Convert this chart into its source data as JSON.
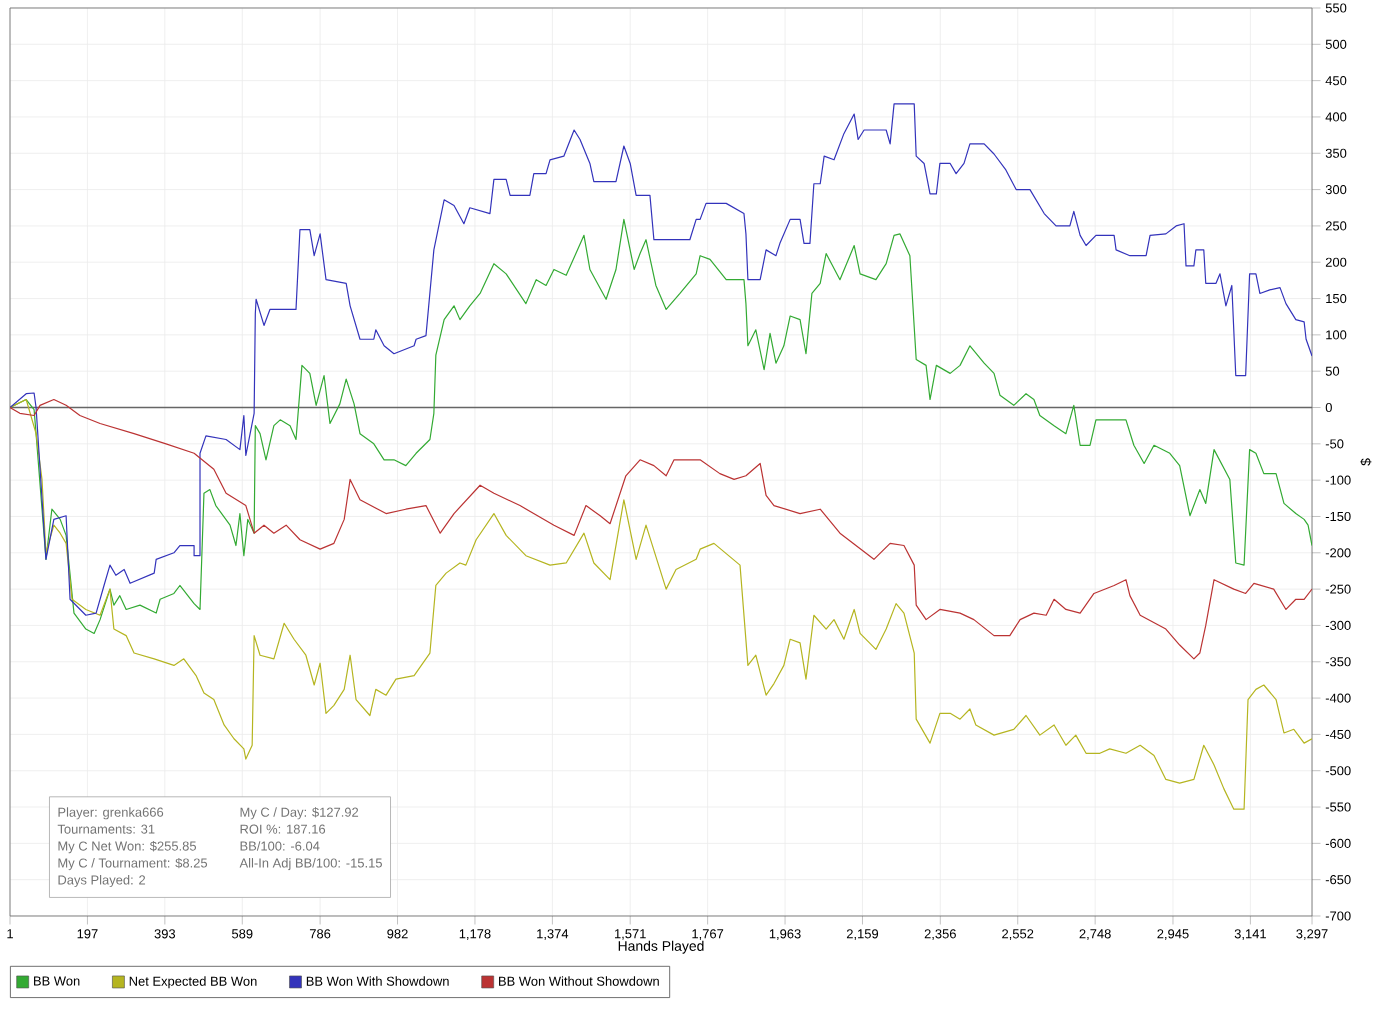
{
  "chart_data": {
    "type": "line",
    "xlabel": "Hands Played",
    "ylabel": "$",
    "xlim": [
      1,
      3297
    ],
    "ylim": [
      -700,
      550
    ],
    "xticks": [
      {
        "value": 1,
        "label": "1"
      },
      {
        "value": 197,
        "label": "197"
      },
      {
        "value": 393,
        "label": "393"
      },
      {
        "value": 589,
        "label": "589"
      },
      {
        "value": 786,
        "label": "786"
      },
      {
        "value": 982,
        "label": "982"
      },
      {
        "value": 1178,
        "label": "1,178"
      },
      {
        "value": 1374,
        "label": "1,374"
      },
      {
        "value": 1571,
        "label": "1,571"
      },
      {
        "value": 1767,
        "label": "1,767"
      },
      {
        "value": 1963,
        "label": "1,963"
      },
      {
        "value": 2159,
        "label": "2,159"
      },
      {
        "value": 2356,
        "label": "2,356"
      },
      {
        "value": 2552,
        "label": "2,552"
      },
      {
        "value": 2748,
        "label": "2,748"
      },
      {
        "value": 2945,
        "label": "2,945"
      },
      {
        "value": 3141,
        "label": "3,141"
      },
      {
        "value": 3297,
        "label": "3,297"
      }
    ],
    "yticks": [
      -700,
      -650,
      -600,
      -550,
      -500,
      -450,
      -400,
      -350,
      -300,
      -250,
      -200,
      -150,
      -100,
      -50,
      0,
      50,
      100,
      150,
      200,
      250,
      300,
      350,
      400,
      450,
      500,
      550
    ],
    "grid": true,
    "legend": "bottom",
    "ref_lines": [
      {
        "axis": "y",
        "value": 0,
        "color": "#666666"
      }
    ],
    "annotations": [
      "Player: grenka666",
      "Tournaments: 31",
      "My C Net Won: $255.85",
      "My C / Tournament: $8.25",
      "Days Played: 2",
      "My C / Day: $127.92",
      "ROI %: 187.16",
      "BB/100: -6.04",
      "All-In Adj BB/100: -15.15"
    ],
    "series": [
      {
        "name": "BB Won",
        "color": "#33aa33",
        "x": [
          1,
          42,
          62,
          67,
          92,
          107,
          128,
          143,
          163,
          193,
          214,
          229,
          254,
          264,
          279,
          295,
          330,
          371,
          381,
          416,
          431,
          467,
          482,
          492,
          507,
          522,
          558,
          573,
          583,
          593,
          603,
          619,
          622,
          634,
          649,
          669,
          685,
          710,
          725,
          740,
          760,
          776,
          796,
          811,
          836,
          852,
          872,
          887,
          922,
          948,
          973,
          1003,
          1029,
          1064,
          1074,
          1079,
          1100,
          1125,
          1140,
          1165,
          1191,
          1226,
          1257,
          1307,
          1333,
          1358,
          1378,
          1409,
          1454,
          1469,
          1510,
          1535,
          1555,
          1581,
          1596,
          1611,
          1636,
          1662,
          1697,
          1738,
          1748,
          1773,
          1814,
          1859,
          1864,
          1869,
          1889,
          1910,
          1925,
          1940,
          1960,
          1976,
          2001,
          2016,
          2031,
          2052,
          2067,
          2102,
          2138,
          2153,
          2193,
          2219,
          2239,
          2254,
          2279,
          2295,
          2320,
          2330,
          2346,
          2381,
          2406,
          2431,
          2467,
          2492,
          2507,
          2542,
          2573,
          2593,
          2608,
          2644,
          2674,
          2694,
          2710,
          2735,
          2750,
          2826,
          2846,
          2872,
          2897,
          2937,
          2962,
          2988,
          3013,
          3028,
          3049,
          3089,
          3104,
          3125,
          3139,
          3155,
          3175,
          3206,
          3226,
          3256,
          3277,
          3287,
          3297
        ],
        "values": [
          0,
          11,
          -3,
          -36,
          -209,
          -140,
          -154,
          -176,
          -283,
          -305,
          -311,
          -292,
          -250,
          -272,
          -259,
          -278,
          -272,
          -283,
          -264,
          -256,
          -245,
          -270,
          -278,
          -118,
          -113,
          -135,
          -162,
          -190,
          -146,
          -204,
          -154,
          -173,
          -25,
          -36,
          -72,
          -25,
          -17,
          -25,
          -44,
          58,
          47,
          3,
          44,
          -22,
          5,
          39,
          5,
          -36,
          -50,
          -72,
          -72,
          -80,
          -63,
          -44,
          -8,
          72,
          121,
          140,
          121,
          140,
          157,
          198,
          184,
          143,
          176,
          168,
          190,
          182,
          237,
          190,
          149,
          190,
          259,
          190,
          212,
          231,
          168,
          135,
          157,
          184,
          209,
          204,
          176,
          176,
          143,
          85,
          107,
          52,
          102,
          61,
          85,
          126,
          121,
          74,
          157,
          171,
          212,
          176,
          223,
          184,
          176,
          198,
          237,
          239,
          209,
          66,
          58,
          11,
          58,
          47,
          58,
          85,
          61,
          47,
          17,
          3,
          19,
          11,
          -11,
          -25,
          -36,
          3,
          -52,
          -52,
          -17,
          -17,
          -52,
          -77,
          -52,
          -63,
          -80,
          -149,
          -113,
          -132,
          -58,
          -99,
          -214,
          -217,
          -58,
          -63,
          -91,
          -91,
          -132,
          -146,
          -154,
          -162,
          -190
        ]
      },
      {
        "name": "Net Expected BB Won",
        "color": "#b5b520",
        "x": [
          1,
          42,
          67,
          82,
          92,
          112,
          128,
          143,
          158,
          193,
          229,
          254,
          264,
          295,
          315,
          366,
          416,
          441,
          472,
          492,
          517,
          543,
          568,
          593,
          598,
          614,
          619,
          634,
          669,
          695,
          720,
          750,
          771,
          786,
          801,
          821,
          847,
          862,
          877,
          912,
          927,
          953,
          978,
          1024,
          1064,
          1079,
          1105,
          1140,
          1155,
          1181,
          1226,
          1257,
          1307,
          1368,
          1409,
          1454,
          1479,
          1520,
          1555,
          1586,
          1611,
          1662,
          1687,
          1738,
          1748,
          1783,
          1849,
          1869,
          1889,
          1915,
          1935,
          1960,
          1976,
          2001,
          2016,
          2036,
          2067,
          2087,
          2112,
          2138,
          2153,
          2193,
          2219,
          2244,
          2264,
          2290,
          2295,
          2330,
          2355,
          2381,
          2406,
          2431,
          2446,
          2492,
          2542,
          2573,
          2608,
          2644,
          2674,
          2699,
          2725,
          2760,
          2785,
          2826,
          2862,
          2897,
          2927,
          2962,
          2998,
          3023,
          3049,
          3074,
          3099,
          3125,
          3135,
          3155,
          3175,
          3206,
          3226,
          3251,
          3277,
          3297
        ],
        "values": [
          0,
          11,
          -36,
          -99,
          -200,
          -162,
          -173,
          -187,
          -264,
          -278,
          -286,
          -250,
          -305,
          -314,
          -338,
          -346,
          -355,
          -346,
          -369,
          -393,
          -402,
          -437,
          -456,
          -470,
          -484,
          -465,
          -314,
          -341,
          -346,
          -297,
          -319,
          -341,
          -382,
          -352,
          -421,
          -410,
          -388,
          -341,
          -402,
          -424,
          -388,
          -396,
          -374,
          -369,
          -338,
          -245,
          -228,
          -214,
          -217,
          -182,
          -146,
          -176,
          -204,
          -217,
          -214,
          -173,
          -214,
          -237,
          -127,
          -209,
          -162,
          -250,
          -223,
          -209,
          -195,
          -187,
          -217,
          -355,
          -341,
          -396,
          -380,
          -355,
          -319,
          -324,
          -374,
          -286,
          -305,
          -292,
          -319,
          -278,
          -311,
          -333,
          -305,
          -270,
          -283,
          -338,
          -429,
          -462,
          -421,
          -421,
          -429,
          -415,
          -437,
          -451,
          -443,
          -424,
          -451,
          -437,
          -465,
          -451,
          -476,
          -476,
          -470,
          -476,
          -465,
          -479,
          -512,
          -517,
          -512,
          -465,
          -492,
          -525,
          -553,
          -553,
          -402,
          -388,
          -382,
          -402,
          -448,
          -443,
          -462,
          -456
        ]
      },
      {
        "name": "BB Won With Showdown",
        "color": "#3333bb",
        "x": [
          1,
          42,
          62,
          67,
          92,
          112,
          143,
          153,
          193,
          219,
          239,
          254,
          269,
          290,
          305,
          366,
          371,
          416,
          431,
          467,
          467,
          482,
          482,
          497,
          548,
          583,
          593,
          598,
          619,
          622,
          624,
          644,
          659,
          725,
          735,
          760,
          771,
          786,
          801,
          852,
          862,
          887,
          922,
          927,
          948,
          973,
          1024,
          1029,
          1054,
          1074,
          1100,
          1125,
          1150,
          1165,
          1216,
          1226,
          1257,
          1267,
          1317,
          1327,
          1358,
          1368,
          1403,
          1429,
          1444,
          1469,
          1479,
          1535,
          1555,
          1571,
          1586,
          1621,
          1631,
          1722,
          1738,
          1748,
          1763,
          1814,
          1859,
          1864,
          1869,
          1900,
          1915,
          1940,
          1950,
          1976,
          2001,
          2011,
          2026,
          2036,
          2052,
          2062,
          2087,
          2112,
          2138,
          2148,
          2163,
          2219,
          2229,
          2239,
          2290,
          2295,
          2315,
          2330,
          2346,
          2355,
          2381,
          2396,
          2416,
          2431,
          2467,
          2492,
          2522,
          2548,
          2583,
          2619,
          2649,
          2684,
          2694,
          2710,
          2725,
          2750,
          2796,
          2801,
          2836,
          2877,
          2887,
          2927,
          2953,
          2973,
          2978,
          2998,
          3003,
          3023,
          3028,
          3054,
          3064,
          3079,
          3094,
          3104,
          3129,
          3139,
          3155,
          3165,
          3190,
          3216,
          3231,
          3256,
          3277,
          3282,
          3297
        ],
        "values": [
          0,
          19,
          20,
          0,
          -209,
          -154,
          -149,
          -264,
          -286,
          -283,
          -245,
          -217,
          -231,
          -223,
          -242,
          -228,
          -209,
          -200,
          -190,
          -190,
          -204,
          -204,
          -63,
          -39,
          -44,
          -58,
          -11,
          -66,
          -8,
          129,
          149,
          113,
          135,
          135,
          245,
          245,
          209,
          239,
          176,
          171,
          140,
          94,
          94,
          107,
          85,
          74,
          85,
          94,
          99,
          217,
          286,
          278,
          253,
          275,
          267,
          314,
          314,
          292,
          292,
          322,
          322,
          341,
          346,
          382,
          369,
          336,
          311,
          311,
          360,
          336,
          292,
          292,
          231,
          231,
          259,
          259,
          281,
          281,
          267,
          239,
          176,
          176,
          217,
          209,
          226,
          259,
          259,
          226,
          226,
          308,
          308,
          346,
          341,
          377,
          404,
          369,
          382,
          382,
          363,
          418,
          418,
          346,
          336,
          294,
          294,
          336,
          336,
          322,
          336,
          363,
          363,
          349,
          327,
          300,
          300,
          267,
          250,
          250,
          270,
          237,
          223,
          237,
          237,
          217,
          209,
          209,
          237,
          239,
          250,
          253,
          195,
          195,
          217,
          217,
          171,
          171,
          184,
          140,
          168,
          44,
          44,
          184,
          184,
          157,
          162,
          165,
          143,
          121,
          118,
          94,
          71
        ]
      },
      {
        "name": "BB Won Without Showdown",
        "color": "#bb3333",
        "x": [
          1,
          26,
          62,
          77,
          112,
          143,
          178,
          229,
          315,
          396,
          467,
          517,
          548,
          598,
          619,
          644,
          669,
          700,
          735,
          786,
          821,
          847,
          862,
          887,
          953,
          1003,
          1054,
          1090,
          1125,
          1191,
          1226,
          1292,
          1378,
          1429,
          1459,
          1495,
          1520,
          1560,
          1596,
          1631,
          1662,
          1682,
          1748,
          1798,
          1834,
          1864,
          1900,
          1915,
          1935,
          2001,
          2052,
          2102,
          2188,
          2229,
          2264,
          2290,
          2295,
          2320,
          2355,
          2406,
          2441,
          2492,
          2532,
          2558,
          2593,
          2624,
          2644,
          2674,
          2710,
          2745,
          2796,
          2826,
          2836,
          2862,
          2927,
          2962,
          2998,
          3013,
          3028,
          3049,
          3099,
          3129,
          3150,
          3200,
          3231,
          3256,
          3277,
          3297
        ],
        "values": [
          0,
          -8,
          -11,
          3,
          11,
          3,
          -11,
          -22,
          -36,
          -50,
          -63,
          -85,
          -118,
          -135,
          -173,
          -162,
          -173,
          -162,
          -182,
          -195,
          -187,
          -154,
          -99,
          -127,
          -146,
          -140,
          -135,
          -173,
          -146,
          -107,
          -118,
          -135,
          -162,
          -176,
          -135,
          -149,
          -160,
          -94,
          -72,
          -80,
          -94,
          -72,
          -72,
          -91,
          -99,
          -94,
          -77,
          -121,
          -135,
          -146,
          -140,
          -173,
          -209,
          -187,
          -190,
          -217,
          -272,
          -292,
          -278,
          -283,
          -292,
          -314,
          -314,
          -292,
          -283,
          -286,
          -264,
          -278,
          -283,
          -256,
          -245,
          -237,
          -259,
          -286,
          -305,
          -327,
          -346,
          -338,
          -300,
          -237,
          -250,
          -256,
          -242,
          -250,
          -278,
          -264,
          -264,
          -250
        ]
      }
    ]
  }
}
